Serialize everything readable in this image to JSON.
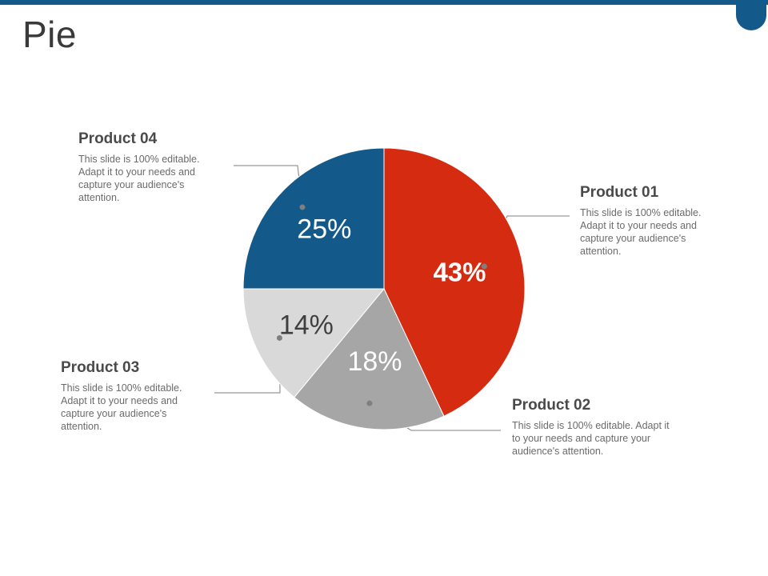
{
  "slide": {
    "title": "Pie"
  },
  "colors": {
    "accent": "#13598a",
    "product01": "#d52b11",
    "product02": "#a6a6a6",
    "product03": "#d9d9d9",
    "product04": "#13598a"
  },
  "callouts": [
    {
      "title": "Product 01",
      "text": "This slide is 100% editable. Adapt it to your needs and capture your audience's attention."
    },
    {
      "title": "Product 02",
      "text": "This slide is 100% editable. Adapt it to your needs and capture your audience's attention."
    },
    {
      "title": "Product 03",
      "text": "This slide is 100% editable. Adapt it to your needs and capture your audience's attention."
    },
    {
      "title": "Product 04",
      "text": "This slide is 100% editable. Adapt it to your needs and capture your audience's attention."
    }
  ],
  "chart_data": {
    "type": "pie",
    "title": "",
    "categories": [
      "Product 01",
      "Product 02",
      "Product 03",
      "Product 04"
    ],
    "values": [
      43,
      18,
      14,
      25
    ],
    "labels": [
      "43%",
      "18%",
      "14%",
      "25%"
    ],
    "start_angle_deg": 0,
    "direction": "clockwise"
  }
}
